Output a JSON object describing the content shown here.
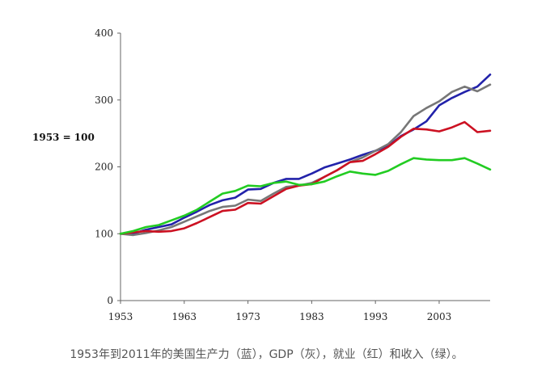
{
  "caption": "1953年到2011年的美国生产力（蓝），GDP（灰），就业（红）和收入（绿）。",
  "chart_data": {
    "type": "line",
    "ylabel": "1953 = 100",
    "xlim": [
      1953,
      2011
    ],
    "ylim": [
      0,
      400
    ],
    "x_ticks": [
      {
        "value": 1953,
        "label": "1953"
      },
      {
        "value": 1963,
        "label": "1963"
      },
      {
        "value": 1973,
        "label": "1973"
      },
      {
        "value": 1983,
        "label": "1983"
      },
      {
        "value": 1993,
        "label": "1993"
      },
      {
        "value": 2003,
        "label": "2003"
      }
    ],
    "y_ticks": [
      {
        "value": 0,
        "label": "0"
      },
      {
        "value": 100,
        "label": "100"
      },
      {
        "value": 200,
        "label": "200"
      },
      {
        "value": 300,
        "label": "300"
      },
      {
        "value": 400,
        "label": "400"
      }
    ],
    "grid": false,
    "legend": "none",
    "series": [
      {
        "color": "#2222aa",
        "x": [
          1953,
          1955,
          1957,
          1959,
          1961,
          1963,
          1965,
          1967,
          1969,
          1971,
          1973,
          1975,
          1977,
          1979,
          1981,
          1983,
          1985,
          1987,
          1989,
          1991,
          1993,
          1995,
          1997,
          1999,
          2001,
          2003,
          2005,
          2007,
          2009,
          2011
        ],
        "y": [
          100,
          100,
          106,
          110,
          114,
          124,
          133,
          143,
          150,
          154,
          166,
          167,
          176,
          182,
          182,
          190,
          199,
          205,
          211,
          218,
          224,
          231,
          246,
          256,
          268,
          292,
          303,
          312,
          320,
          338
        ]
      },
      {
        "color": "#777777",
        "x": [
          1953,
          1955,
          1957,
          1959,
          1961,
          1963,
          1965,
          1967,
          1969,
          1971,
          1973,
          1975,
          1977,
          1979,
          1981,
          1983,
          1985,
          1987,
          1989,
          1991,
          1993,
          1995,
          1997,
          1999,
          2001,
          2003,
          2005,
          2007,
          2009,
          2011
        ],
        "y": [
          100,
          98,
          101,
          105,
          110,
          118,
          126,
          134,
          140,
          142,
          151,
          149,
          160,
          170,
          172,
          176,
          185,
          195,
          207,
          214,
          224,
          234,
          252,
          276,
          288,
          298,
          312,
          320,
          313,
          323
        ]
      },
      {
        "color": "#cc1122",
        "x": [
          1953,
          1955,
          1957,
          1959,
          1961,
          1963,
          1965,
          1967,
          1969,
          1971,
          1973,
          1975,
          1977,
          1979,
          1981,
          1983,
          1985,
          1987,
          1989,
          1991,
          1993,
          1995,
          1997,
          1999,
          2001,
          2003,
          2005,
          2007,
          2009,
          2011
        ],
        "y": [
          100,
          102,
          104,
          103,
          104,
          108,
          116,
          125,
          134,
          136,
          146,
          145,
          156,
          167,
          172,
          174,
          185,
          195,
          207,
          209,
          219,
          230,
          245,
          257,
          256,
          253,
          259,
          267,
          252,
          254
        ]
      },
      {
        "color": "#22cc22",
        "x": [
          1953,
          1955,
          1957,
          1959,
          1961,
          1963,
          1965,
          1967,
          1969,
          1971,
          1973,
          1975,
          1977,
          1979,
          1981,
          1983,
          1985,
          1987,
          1989,
          1991,
          1993,
          1995,
          1997,
          1999,
          2001,
          2003,
          2005,
          2007,
          2009,
          2011
        ],
        "y": [
          100,
          104,
          110,
          113,
          120,
          127,
          136,
          148,
          160,
          164,
          172,
          171,
          176,
          178,
          173,
          174,
          178,
          186,
          193,
          190,
          188,
          194,
          204,
          213,
          211,
          210,
          210,
          213,
          205,
          196
        ]
      }
    ]
  }
}
